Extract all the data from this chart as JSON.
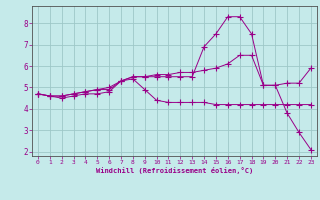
{
  "title": "",
  "xlabel": "Windchill (Refroidissement éolien,°C)",
  "bg_color": "#c5eaea",
  "grid_color": "#9ec8c8",
  "line_color": "#990088",
  "xlim": [
    -0.5,
    23.5
  ],
  "ylim": [
    1.8,
    8.8
  ],
  "yticks": [
    2,
    3,
    4,
    5,
    6,
    7,
    8
  ],
  "xticks": [
    0,
    1,
    2,
    3,
    4,
    5,
    6,
    7,
    8,
    9,
    10,
    11,
    12,
    13,
    14,
    15,
    16,
    17,
    18,
    19,
    20,
    21,
    22,
    23
  ],
  "line1_x": [
    0,
    1,
    2,
    3,
    4,
    5,
    6,
    7,
    8,
    9,
    10,
    11,
    12,
    13,
    14,
    15,
    16,
    17,
    18,
    19,
    20,
    21,
    22,
    23
  ],
  "line1_y": [
    4.7,
    4.6,
    4.5,
    4.6,
    4.7,
    4.7,
    4.8,
    5.3,
    5.4,
    4.9,
    4.4,
    4.3,
    4.3,
    4.3,
    4.3,
    4.2,
    4.2,
    4.2,
    4.2,
    4.2,
    4.2,
    4.2,
    4.2,
    4.2
  ],
  "line2_x": [
    0,
    1,
    2,
    3,
    4,
    5,
    6,
    7,
    8,
    9,
    10,
    11,
    12,
    13,
    14,
    15,
    16,
    17,
    18,
    19,
    20,
    21,
    22,
    23
  ],
  "line2_y": [
    4.7,
    4.6,
    4.6,
    4.7,
    4.8,
    4.9,
    4.9,
    5.3,
    5.5,
    5.5,
    5.5,
    5.5,
    5.5,
    5.5,
    6.9,
    7.5,
    8.3,
    8.3,
    7.5,
    5.1,
    5.1,
    3.8,
    2.9,
    2.1
  ],
  "line3_x": [
    0,
    1,
    2,
    3,
    4,
    5,
    6,
    7,
    8,
    9,
    10,
    11,
    12,
    13,
    14,
    15,
    16,
    17,
    18,
    19,
    20,
    21,
    22,
    23
  ],
  "line3_y": [
    4.7,
    4.6,
    4.6,
    4.7,
    4.8,
    4.9,
    5.0,
    5.3,
    5.5,
    5.5,
    5.6,
    5.6,
    5.7,
    5.7,
    5.8,
    5.9,
    6.1,
    6.5,
    6.5,
    5.1,
    5.1,
    5.2,
    5.2,
    5.9
  ]
}
